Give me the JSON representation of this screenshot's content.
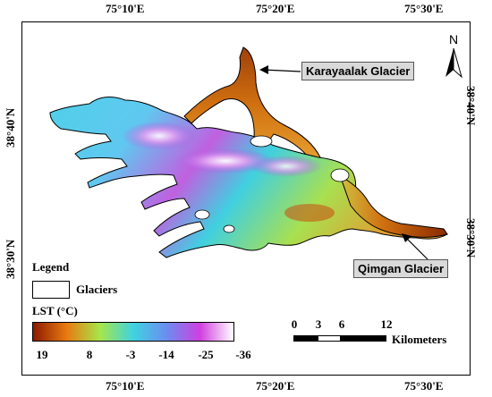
{
  "coords": {
    "top": [
      "75°10'E",
      "75°20'E",
      "75°30'E"
    ],
    "bottom": [
      "75°10'E",
      "75°20'E",
      "75°30'E"
    ],
    "left": [
      "38°40'N",
      "38°30'N"
    ],
    "right": [
      "38°40'N",
      "38°30'N"
    ]
  },
  "callouts": {
    "karayaalak": "Karayaalak Glacier",
    "qimgan": "Qimgan Glacier"
  },
  "north_label": "N",
  "legend": {
    "title": "Legend",
    "glaciers_label": "Glaciers",
    "lst_title": "LST (°C)",
    "lst_ticks": [
      "19",
      "8",
      "-3",
      "-14",
      "-25",
      "-36"
    ],
    "lst_colors": [
      "#8b1a00",
      "#e87a10",
      "#a6e64a",
      "#3fd3e0",
      "#6c8cf0",
      "#d040e0",
      "#ffffff"
    ]
  },
  "scale": {
    "ticks": [
      "0",
      "3",
      "6",
      "12"
    ],
    "unit": "Kilometers"
  },
  "colors": {
    "accent_brown": "#a0400a",
    "outline": "#000000",
    "callout_bg": "#d9d9d9"
  }
}
